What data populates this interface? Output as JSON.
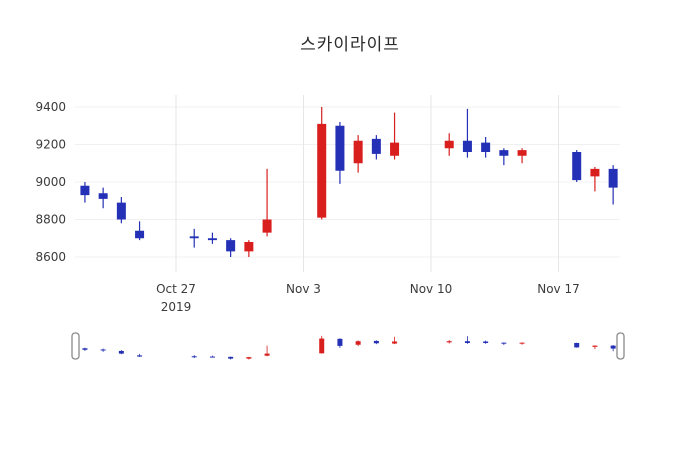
{
  "title": "스카이라이프",
  "colors": {
    "up": "#d91e1e",
    "down": "#2430b5",
    "grid_h": "#f0f0f0",
    "grid_v": "#e6e6e6",
    "axis_text": "#3b3b3b",
    "handle_stroke": "#8a8a8a",
    "handle_fill": "#ffffff"
  },
  "chart_data": {
    "type": "candlestick",
    "title": "스카이라이프",
    "legend": "none",
    "grid": "on",
    "rangeslider": true,
    "ylim": [
      8520,
      9470
    ],
    "y_ticks": [
      9400,
      9200,
      9000,
      8800,
      8600
    ],
    "x_ticks": [
      {
        "label": "Oct 27",
        "sub": "2019",
        "date": "2019-10-27"
      },
      {
        "label": "Nov 3",
        "sub": "",
        "date": "2019-11-03"
      },
      {
        "label": "Nov 10",
        "sub": "",
        "date": "2019-11-10"
      },
      {
        "label": "Nov 17",
        "sub": "",
        "date": "2019-11-17"
      }
    ],
    "candles": [
      {
        "date": "2019-10-22",
        "open": 8980,
        "high": 9000,
        "low": 8890,
        "close": 8930
      },
      {
        "date": "2019-10-23",
        "open": 8940,
        "high": 8970,
        "low": 8860,
        "close": 8910
      },
      {
        "date": "2019-10-24",
        "open": 8890,
        "high": 8920,
        "low": 8780,
        "close": 8800
      },
      {
        "date": "2019-10-25",
        "open": 8740,
        "high": 8790,
        "low": 8690,
        "close": 8700
      },
      {
        "date": "2019-10-28",
        "open": 8710,
        "high": 8750,
        "low": 8650,
        "close": 8700
      },
      {
        "date": "2019-10-29",
        "open": 8700,
        "high": 8730,
        "low": 8670,
        "close": 8690
      },
      {
        "date": "2019-10-30",
        "open": 8690,
        "high": 8700,
        "low": 8600,
        "close": 8630
      },
      {
        "date": "2019-10-31",
        "open": 8630,
        "high": 8690,
        "low": 8600,
        "close": 8680
      },
      {
        "date": "2019-11-01",
        "open": 8730,
        "high": 9070,
        "low": 8710,
        "close": 8800
      },
      {
        "date": "2019-11-04",
        "open": 8810,
        "high": 9400,
        "low": 8800,
        "close": 9310
      },
      {
        "date": "2019-11-05",
        "open": 9300,
        "high": 9320,
        "low": 8990,
        "close": 9060
      },
      {
        "date": "2019-11-06",
        "open": 9100,
        "high": 9250,
        "low": 9050,
        "close": 9220
      },
      {
        "date": "2019-11-07",
        "open": 9230,
        "high": 9250,
        "low": 9120,
        "close": 9150
      },
      {
        "date": "2019-11-08",
        "open": 9140,
        "high": 9370,
        "low": 9120,
        "close": 9210
      },
      {
        "date": "2019-11-11",
        "open": 9180,
        "high": 9260,
        "low": 9140,
        "close": 9220
      },
      {
        "date": "2019-11-12",
        "open": 9220,
        "high": 9390,
        "low": 9130,
        "close": 9160
      },
      {
        "date": "2019-11-13",
        "open": 9210,
        "high": 9240,
        "low": 9130,
        "close": 9160
      },
      {
        "date": "2019-11-14",
        "open": 9170,
        "high": 9180,
        "low": 9090,
        "close": 9140
      },
      {
        "date": "2019-11-15",
        "open": 9140,
        "high": 9180,
        "low": 9100,
        "close": 9170
      },
      {
        "date": "2019-11-18",
        "open": 9160,
        "high": 9170,
        "low": 9000,
        "close": 9010
      },
      {
        "date": "2019-11-19",
        "open": 9030,
        "high": 9080,
        "low": 8950,
        "close": 9070
      },
      {
        "date": "2019-11-20",
        "open": 9070,
        "high": 9090,
        "low": 8880,
        "close": 8970
      }
    ]
  }
}
